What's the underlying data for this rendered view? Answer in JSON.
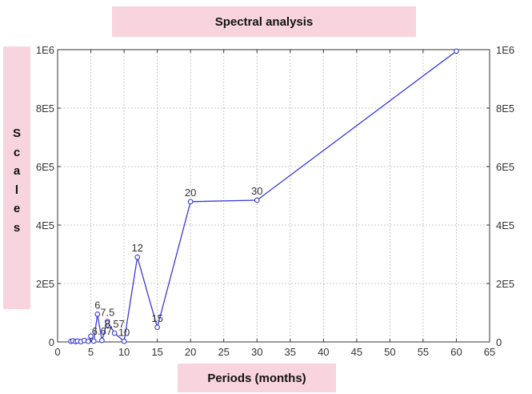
{
  "chart_data": {
    "type": "line",
    "title": "Spectral analysis",
    "xlabel": "Periods (months)",
    "ylabel": "Scales",
    "xlim": [
      0,
      65
    ],
    "ylim": [
      0,
      1000000
    ],
    "x_ticks": [
      "0",
      "5",
      "10",
      "15",
      "20",
      "25",
      "30",
      "35",
      "40",
      "45",
      "50",
      "55",
      "60",
      "65"
    ],
    "y_ticks": [
      "0",
      "2E5",
      "4E5",
      "6E5",
      "8E5",
      "1E6"
    ],
    "grid": true,
    "series": [
      {
        "color": "#3a3ad8",
        "points": [
          {
            "x": 2.0,
            "y": 2000,
            "label": ""
          },
          {
            "x": 2.3,
            "y": 4000,
            "label": ""
          },
          {
            "x": 2.7,
            "y": 1500,
            "label": ""
          },
          {
            "x": 3.0,
            "y": 3000,
            "label": ""
          },
          {
            "x": 3.5,
            "y": 1000,
            "label": ""
          },
          {
            "x": 4.0,
            "y": 5000,
            "label": ""
          },
          {
            "x": 4.6,
            "y": 2000,
            "label": ""
          },
          {
            "x": 5.0,
            "y": 20000,
            "label": ""
          },
          {
            "x": 5.45,
            "y": 3000,
            "label": ""
          },
          {
            "x": 6.0,
            "y": 95000,
            "label": "6"
          },
          {
            "x": 6.67,
            "y": 5000,
            "label": "6.67"
          },
          {
            "x": 7.5,
            "y": 70000,
            "label": "7.5"
          },
          {
            "x": 8.57,
            "y": 30000,
            "label": "8.57"
          },
          {
            "x": 10.0,
            "y": 2000,
            "label": "10"
          },
          {
            "x": 12.0,
            "y": 290000,
            "label": "12"
          },
          {
            "x": 15.0,
            "y": 50000,
            "label": "15"
          },
          {
            "x": 20.0,
            "y": 480000,
            "label": "20"
          },
          {
            "x": 30.0,
            "y": 485000,
            "label": "30"
          },
          {
            "x": 60.0,
            "y": 995000,
            "label": ""
          }
        ]
      }
    ]
  }
}
